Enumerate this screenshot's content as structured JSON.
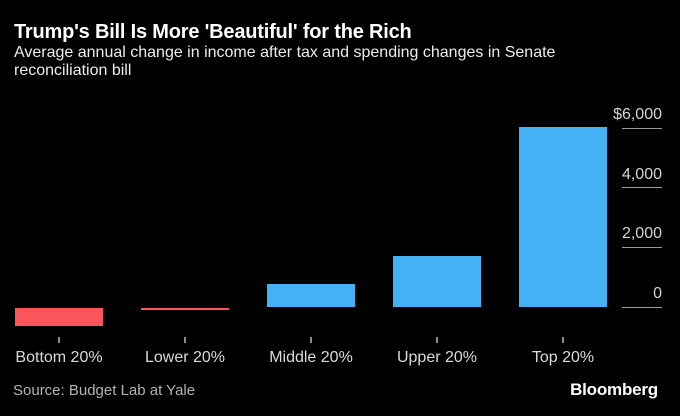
{
  "header": {
    "title": "Trump's Bill Is More 'Beautiful' for the Rich",
    "subtitle": "Average annual change in income after tax and spending changes in Senate reconciliation bill"
  },
  "chart_data": {
    "type": "bar",
    "title": "Trump's Bill Is More 'Beautiful' for the Rich",
    "subtitle": "Average annual change in income after tax and spending changes in Senate reconciliation bill",
    "categories": [
      "Bottom 20%",
      "Lower 20%",
      "Middle 20%",
      "Upper 20%",
      "Top 20%"
    ],
    "values": [
      -600,
      -60,
      770,
      1710,
      6030
    ],
    "unit": "US dollars per year",
    "xlabel": "",
    "ylabel": "",
    "ylim": [
      -700,
      6400
    ],
    "y_axis": {
      "side": "right",
      "ticks": [
        {
          "label": "$6,000",
          "value": 6000
        },
        {
          "label": "4,000",
          "value": 4000
        },
        {
          "label": "2,000",
          "value": 2000
        },
        {
          "label": "0",
          "value": 0
        }
      ]
    },
    "legend": "none",
    "grid": "right-edge tick dashes only",
    "colors": {
      "positive": "#45b1f5",
      "negative": "#fa545c"
    }
  },
  "footer": {
    "source": "Source: Budget Lab at Yale",
    "brand": "Bloomberg"
  },
  "colors": {
    "background": "#000000",
    "title_text": "#ffffff",
    "subtitle_text": "#ececec",
    "axis_text": "#d4d4d4",
    "tick_line": "#9a9a9a",
    "source_text": "#b3b3b3"
  }
}
